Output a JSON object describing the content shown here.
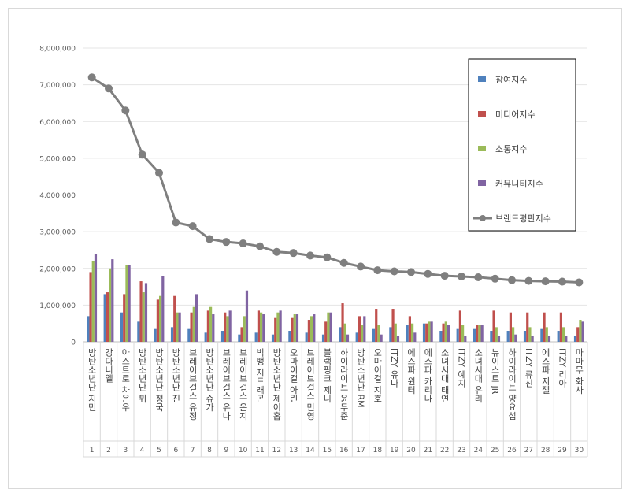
{
  "chart_data": {
    "type": "bar+line",
    "title": "",
    "xlabel": "",
    "ylabel": "",
    "ylim": [
      0,
      8000000
    ],
    "y_ticks": [
      "0",
      "1,000,000",
      "2,000,000",
      "3,000,000",
      "4,000,000",
      "5,000,000",
      "6,000,000",
      "7,000,000",
      "8,000,000"
    ],
    "grid": "horizontal",
    "legend_position": "right",
    "categories": [
      "방탄소년단 지민",
      "강다니엘",
      "아스트로 차은우",
      "방탄소년단 뷔",
      "방탄소년단 정국",
      "방탄소년단 진",
      "브레이브걸스 유정",
      "방탄소년단 슈가",
      "브레이브걸스 유나",
      "브레이브걸스 은지",
      "빅뱅 지드래곤",
      "방탄소년단 제이홉",
      "오마이걸 아린",
      "브레이브걸스 민영",
      "블랙핑크 제니",
      "하이라이트 윤두준",
      "방탄소년단 RM",
      "오마이걸 지호",
      "ITZY 유나",
      "에스파 윈터",
      "에스파 카리나",
      "소녀시대 태연",
      "ITZY 예지",
      "소녀시대 유리",
      "뉴이스트 JR",
      "하이라이트 양요섭",
      "ITZY 류진",
      "에스파 지젤",
      "ITZY 리아",
      "마마무 화사"
    ],
    "ranks": [
      "1",
      "2",
      "3",
      "4",
      "5",
      "6",
      "7",
      "8",
      "9",
      "10",
      "11",
      "12",
      "13",
      "14",
      "15",
      "16",
      "17",
      "18",
      "19",
      "20",
      "21",
      "22",
      "23",
      "24",
      "25",
      "26",
      "27",
      "28",
      "29",
      "30"
    ],
    "series": [
      {
        "name": "참여지수",
        "kind": "bar",
        "color": "#4f81bd",
        "values": [
          700000,
          1300000,
          800000,
          550000,
          350000,
          400000,
          350000,
          250000,
          300000,
          200000,
          250000,
          200000,
          300000,
          250000,
          200000,
          400000,
          250000,
          350000,
          400000,
          450000,
          500000,
          300000,
          350000,
          350000,
          300000,
          300000,
          300000,
          350000,
          300000,
          150000
        ]
      },
      {
        "name": "미디어지수",
        "kind": "bar",
        "color": "#c0504d",
        "values": [
          1900000,
          1350000,
          1300000,
          1650000,
          1150000,
          1250000,
          800000,
          850000,
          800000,
          400000,
          850000,
          650000,
          650000,
          600000,
          550000,
          1050000,
          700000,
          900000,
          900000,
          700000,
          500000,
          500000,
          850000,
          450000,
          850000,
          800000,
          800000,
          800000,
          800000,
          400000
        ]
      },
      {
        "name": "소통지수",
        "kind": "bar",
        "color": "#9bbb59",
        "values": [
          2200000,
          2000000,
          2100000,
          1350000,
          1250000,
          800000,
          950000,
          950000,
          700000,
          700000,
          800000,
          800000,
          750000,
          700000,
          800000,
          500000,
          450000,
          450000,
          500000,
          500000,
          550000,
          550000,
          450000,
          450000,
          400000,
          400000,
          400000,
          400000,
          400000,
          600000
        ]
      },
      {
        "name": "커뮤니티지수",
        "kind": "bar",
        "color": "#8064a2",
        "values": [
          2400000,
          2250000,
          2100000,
          1600000,
          1800000,
          800000,
          1300000,
          750000,
          850000,
          1400000,
          750000,
          850000,
          750000,
          750000,
          800000,
          200000,
          700000,
          200000,
          150000,
          250000,
          550000,
          450000,
          150000,
          450000,
          150000,
          200000,
          150000,
          150000,
          150000,
          550000
        ]
      },
      {
        "name": "브랜드평판지수",
        "kind": "line",
        "color": "#7f7f7f",
        "values": [
          7200000,
          6900000,
          6300000,
          5100000,
          4600000,
          3250000,
          3150000,
          2800000,
          2720000,
          2680000,
          2600000,
          2450000,
          2420000,
          2350000,
          2300000,
          2150000,
          2050000,
          1950000,
          1920000,
          1900000,
          1850000,
          1800000,
          1780000,
          1760000,
          1720000,
          1680000,
          1660000,
          1650000,
          1640000,
          1620000
        ]
      }
    ]
  }
}
